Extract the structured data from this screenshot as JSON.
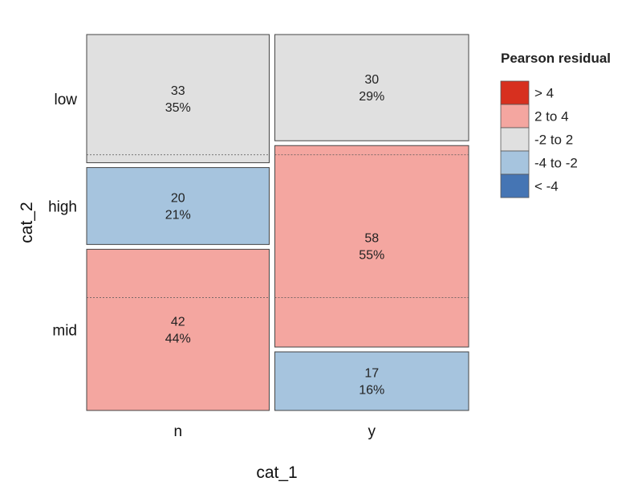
{
  "chart_data": {
    "type": "mosaic",
    "xlabel": "cat_1",
    "ylabel": "cat_2",
    "x_categories": [
      "n",
      "y"
    ],
    "y_categories": [
      "low",
      "high",
      "mid"
    ],
    "x_proportions": [
      0.485,
      0.515
    ],
    "columns": [
      {
        "x": "n",
        "cells": [
          {
            "y": "low",
            "count": "33",
            "percent": "35%",
            "residual_class": "-2 to 2"
          },
          {
            "y": "high",
            "count": "20",
            "percent": "21%",
            "residual_class": "-4 to -2"
          },
          {
            "y": "mid",
            "count": "42",
            "percent": "44%",
            "residual_class": "2 to 4"
          }
        ],
        "proportions": [
          0.35,
          0.21,
          0.44
        ]
      },
      {
        "x": "y",
        "cells": [
          {
            "y": "low",
            "count": "30",
            "percent": "29%",
            "residual_class": "-2 to 2"
          },
          {
            "y": "high",
            "count": "58",
            "percent": "55%",
            "residual_class": "2 to 4"
          },
          {
            "y": "mid",
            "count": "17",
            "percent": "16%",
            "residual_class": "-4 to -2"
          }
        ],
        "proportions": [
          0.29,
          0.55,
          0.16
        ]
      }
    ],
    "expected_proportions": [
      0.32,
      0.38,
      0.3
    ],
    "legend": {
      "title": "Pearson residual",
      "placement": "right",
      "entries": [
        {
          "label": "> 4",
          "color": "#D7301F"
        },
        {
          "label": "2 to 4",
          "color": "#F4A6A0"
        },
        {
          "label": "-2 to 2",
          "color": "#E0E0E0"
        },
        {
          "label": "-4 to -2",
          "color": "#A6C4DE"
        },
        {
          "label": "< -4",
          "color": "#4575B4"
        }
      ]
    },
    "grid": false
  }
}
